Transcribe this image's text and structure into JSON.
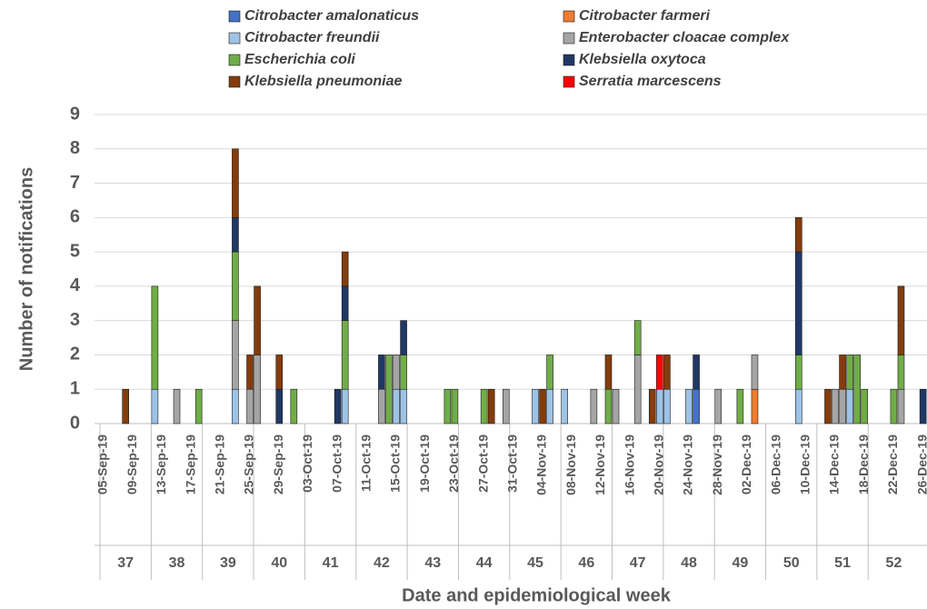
{
  "chart_data": {
    "type": "stacked_bar",
    "y_label": "Number of notifications",
    "x_label": "Date and epidemiological week",
    "ylim": [
      0,
      9
    ],
    "yticks": [
      0,
      1,
      2,
      3,
      4,
      5,
      6,
      7,
      8,
      9
    ],
    "grid": true,
    "categories": [
      "05-Sep-19",
      null,
      null,
      null,
      "09-Sep-19",
      null,
      null,
      null,
      "13-Sep-19",
      null,
      null,
      null,
      "17-Sep-19",
      null,
      null,
      null,
      "21-Sep-19",
      null,
      null,
      null,
      "25-Sep-19",
      null,
      null,
      null,
      "29-Sep-19",
      null,
      null,
      null,
      "03-Oct-19",
      null,
      null,
      null,
      "07-Oct-19",
      null,
      null,
      null,
      "11-Oct-19",
      null,
      null,
      null,
      "15-Oct-19",
      null,
      null,
      null,
      "19-Oct-19",
      null,
      null,
      null,
      "23-Oct-19",
      null,
      null,
      null,
      "27-Oct-19",
      null,
      null,
      null,
      "31-Oct-19",
      null,
      null,
      null,
      "04-Nov-19",
      null,
      null,
      null,
      "08-Nov-19",
      null,
      null,
      null,
      "12-Nov-19",
      null,
      null,
      null,
      "16-Nov-19",
      null,
      null,
      null,
      "20-Nov-19",
      null,
      null,
      null,
      "24-Nov-19",
      null,
      null,
      null,
      "28-Nov-19",
      null,
      null,
      null,
      "02-Dec-19",
      null,
      null,
      null,
      "06-Dec-19",
      null,
      null,
      null,
      "10-Dec-19",
      null,
      null,
      null,
      "14-Dec-19",
      null,
      null,
      null,
      "18-Dec-19",
      null,
      null,
      null,
      "22-Dec-19",
      null,
      null,
      null,
      "26-Dec-19"
    ],
    "weeks": [
      "37",
      "38",
      "39",
      "40",
      "41",
      "42",
      "43",
      "44",
      "45",
      "46",
      "47",
      "48",
      "49",
      "50",
      "51",
      "52"
    ],
    "series": [
      {
        "name": "Citrobacter amalonaticus",
        "color": "#4472c4",
        "values": [
          0,
          0,
          0,
          0,
          0,
          0,
          0,
          0,
          0,
          0,
          0,
          0,
          0,
          0,
          0,
          0,
          0,
          0,
          0,
          0,
          0,
          0,
          0,
          0,
          0,
          0,
          0,
          0,
          0,
          0,
          0,
          0,
          0,
          0,
          0,
          0,
          0,
          0,
          0,
          0,
          0,
          0,
          0,
          0,
          0,
          0,
          0,
          0,
          0,
          0,
          0,
          0,
          0,
          0,
          0,
          0,
          0,
          0,
          0,
          0,
          0,
          0,
          0,
          0,
          0,
          0,
          0,
          0,
          0,
          0,
          0,
          0,
          0,
          0,
          0,
          0,
          0,
          0,
          0,
          0,
          0,
          1,
          0,
          0,
          0,
          0,
          0,
          0,
          0,
          0,
          0,
          0,
          0,
          0,
          0,
          0,
          0,
          0,
          0,
          0,
          0,
          0,
          0,
          0,
          0,
          0,
          0,
          0,
          0,
          0,
          0,
          0,
          0
        ]
      },
      {
        "name": "Citrobacter farmeri",
        "color": "#ed7d31",
        "values": [
          0,
          0,
          0,
          0,
          0,
          0,
          0,
          0,
          0,
          0,
          0,
          0,
          0,
          0,
          0,
          0,
          0,
          0,
          0,
          0,
          0,
          0,
          0,
          0,
          0,
          0,
          0,
          0,
          0,
          0,
          0,
          0,
          0,
          0,
          0,
          0,
          0,
          0,
          0,
          0,
          0,
          0,
          0,
          0,
          0,
          0,
          0,
          0,
          0,
          0,
          0,
          0,
          0,
          0,
          0,
          0,
          0,
          0,
          0,
          0,
          0,
          0,
          0,
          0,
          0,
          0,
          0,
          0,
          0,
          0,
          0,
          0,
          0,
          0,
          0,
          0,
          0,
          0,
          0,
          0,
          0,
          0,
          0,
          0,
          0,
          0,
          0,
          0,
          0,
          1,
          0,
          0,
          0,
          0,
          0,
          0,
          0,
          0,
          0,
          0,
          0,
          0,
          0,
          0,
          0,
          0,
          0,
          0,
          0,
          0,
          0,
          0,
          0
        ]
      },
      {
        "name": "Citrobacter freundii",
        "color": "#9dc3e6",
        "values": [
          0,
          0,
          0,
          0,
          0,
          0,
          0,
          1,
          0,
          0,
          0,
          0,
          0,
          0,
          0,
          0,
          0,
          0,
          1,
          0,
          0,
          0,
          0,
          0,
          0,
          0,
          0,
          0,
          0,
          0,
          0,
          0,
          0,
          1,
          0,
          0,
          0,
          0,
          0,
          0,
          1,
          1,
          0,
          0,
          0,
          0,
          0,
          0,
          0,
          0,
          0,
          0,
          0,
          0,
          0,
          0,
          0,
          0,
          0,
          1,
          0,
          1,
          0,
          1,
          0,
          0,
          0,
          0,
          0,
          0,
          0,
          0,
          0,
          0,
          0,
          0,
          1,
          1,
          0,
          0,
          1,
          0,
          0,
          0,
          0,
          0,
          0,
          0,
          0,
          0,
          0,
          0,
          0,
          0,
          0,
          1,
          0,
          0,
          0,
          0,
          0,
          0,
          1,
          0,
          0,
          0,
          0,
          0,
          0,
          0,
          0,
          0,
          0
        ]
      },
      {
        "name": "Enterobacter cloacae complex",
        "color": "#a5a5a5",
        "values": [
          0,
          0,
          0,
          0,
          0,
          0,
          0,
          0,
          0,
          0,
          1,
          0,
          0,
          0,
          0,
          0,
          0,
          0,
          2,
          0,
          1,
          2,
          0,
          0,
          0,
          0,
          0,
          0,
          0,
          0,
          0,
          0,
          0,
          0,
          0,
          0,
          0,
          0,
          1,
          0,
          1,
          0,
          0,
          0,
          0,
          0,
          0,
          0,
          0,
          0,
          0,
          0,
          0,
          0,
          0,
          1,
          0,
          0,
          0,
          0,
          0,
          0,
          0,
          0,
          0,
          0,
          0,
          1,
          0,
          0,
          1,
          0,
          0,
          2,
          0,
          0,
          0,
          0,
          0,
          0,
          0,
          0,
          0,
          0,
          1,
          0,
          0,
          0,
          0,
          1,
          0,
          0,
          0,
          0,
          0,
          0,
          0,
          0,
          0,
          0,
          1,
          1,
          0,
          0,
          0,
          0,
          0,
          0,
          0,
          1,
          0,
          0,
          0
        ]
      },
      {
        "name": "Escherichia coli",
        "color": "#70ad47",
        "values": [
          0,
          0,
          0,
          0,
          0,
          0,
          0,
          3,
          0,
          0,
          0,
          0,
          0,
          1,
          0,
          0,
          0,
          0,
          2,
          0,
          0,
          0,
          0,
          0,
          0,
          0,
          1,
          0,
          0,
          0,
          0,
          0,
          0,
          2,
          0,
          0,
          0,
          0,
          0,
          2,
          0,
          1,
          0,
          0,
          0,
          0,
          0,
          1,
          1,
          0,
          0,
          0,
          1,
          0,
          0,
          0,
          0,
          0,
          0,
          0,
          0,
          1,
          0,
          0,
          0,
          0,
          0,
          0,
          0,
          1,
          0,
          0,
          0,
          1,
          0,
          0,
          0,
          0,
          0,
          0,
          0,
          0,
          0,
          0,
          0,
          0,
          0,
          1,
          0,
          0,
          0,
          0,
          0,
          0,
          0,
          1,
          0,
          0,
          0,
          0,
          0,
          0,
          1,
          2,
          1,
          0,
          0,
          0,
          1,
          1,
          0,
          0,
          0
        ]
      },
      {
        "name": "Klebsiella oxytoca",
        "color": "#203864",
        "values": [
          0,
          0,
          0,
          0,
          0,
          0,
          0,
          0,
          0,
          0,
          0,
          0,
          0,
          0,
          0,
          0,
          0,
          0,
          1,
          0,
          0,
          0,
          0,
          0,
          1,
          0,
          0,
          0,
          0,
          0,
          0,
          0,
          1,
          1,
          0,
          0,
          0,
          0,
          1,
          0,
          0,
          1,
          0,
          0,
          0,
          0,
          0,
          0,
          0,
          0,
          0,
          0,
          0,
          0,
          0,
          0,
          0,
          0,
          0,
          0,
          0,
          0,
          0,
          0,
          0,
          0,
          0,
          0,
          0,
          0,
          0,
          0,
          0,
          0,
          0,
          0,
          0,
          0,
          0,
          0,
          0,
          1,
          0,
          0,
          0,
          0,
          0,
          0,
          0,
          0,
          0,
          0,
          0,
          0,
          0,
          3,
          0,
          0,
          0,
          0,
          0,
          0,
          0,
          0,
          0,
          0,
          0,
          0,
          0,
          0,
          0,
          0,
          1
        ]
      },
      {
        "name": "Klebsiella pneumoniae",
        "color": "#843c0c",
        "values": [
          0,
          0,
          0,
          1,
          0,
          0,
          0,
          0,
          0,
          0,
          0,
          0,
          0,
          0,
          0,
          0,
          0,
          0,
          2,
          0,
          1,
          2,
          0,
          0,
          1,
          0,
          0,
          0,
          0,
          0,
          0,
          0,
          0,
          1,
          0,
          0,
          0,
          0,
          0,
          0,
          0,
          0,
          0,
          0,
          0,
          0,
          0,
          0,
          0,
          0,
          0,
          0,
          0,
          1,
          0,
          0,
          0,
          0,
          0,
          0,
          1,
          0,
          0,
          0,
          0,
          0,
          0,
          0,
          0,
          1,
          0,
          0,
          0,
          0,
          0,
          1,
          0,
          1,
          0,
          0,
          0,
          0,
          0,
          0,
          0,
          0,
          0,
          0,
          0,
          0,
          0,
          0,
          0,
          0,
          0,
          1,
          0,
          0,
          0,
          1,
          0,
          1,
          0,
          0,
          0,
          0,
          0,
          0,
          0,
          2,
          0,
          0,
          0
        ]
      },
      {
        "name": "Serratia marcescens",
        "color": "#ff0000",
        "values": [
          0,
          0,
          0,
          0,
          0,
          0,
          0,
          0,
          0,
          0,
          0,
          0,
          0,
          0,
          0,
          0,
          0,
          0,
          0,
          0,
          0,
          0,
          0,
          0,
          0,
          0,
          0,
          0,
          0,
          0,
          0,
          0,
          0,
          0,
          0,
          0,
          0,
          0,
          0,
          0,
          0,
          0,
          0,
          0,
          0,
          0,
          0,
          0,
          0,
          0,
          0,
          0,
          0,
          0,
          0,
          0,
          0,
          0,
          0,
          0,
          0,
          0,
          0,
          0,
          0,
          0,
          0,
          0,
          0,
          0,
          0,
          0,
          0,
          0,
          0,
          0,
          1,
          0,
          0,
          0,
          0,
          0,
          0,
          0,
          0,
          0,
          0,
          0,
          0,
          0,
          0,
          0,
          0,
          0,
          0,
          0,
          0,
          0,
          0,
          0,
          0,
          0,
          0,
          0,
          0,
          0,
          0,
          0,
          0,
          0,
          0,
          0,
          0
        ]
      }
    ]
  }
}
